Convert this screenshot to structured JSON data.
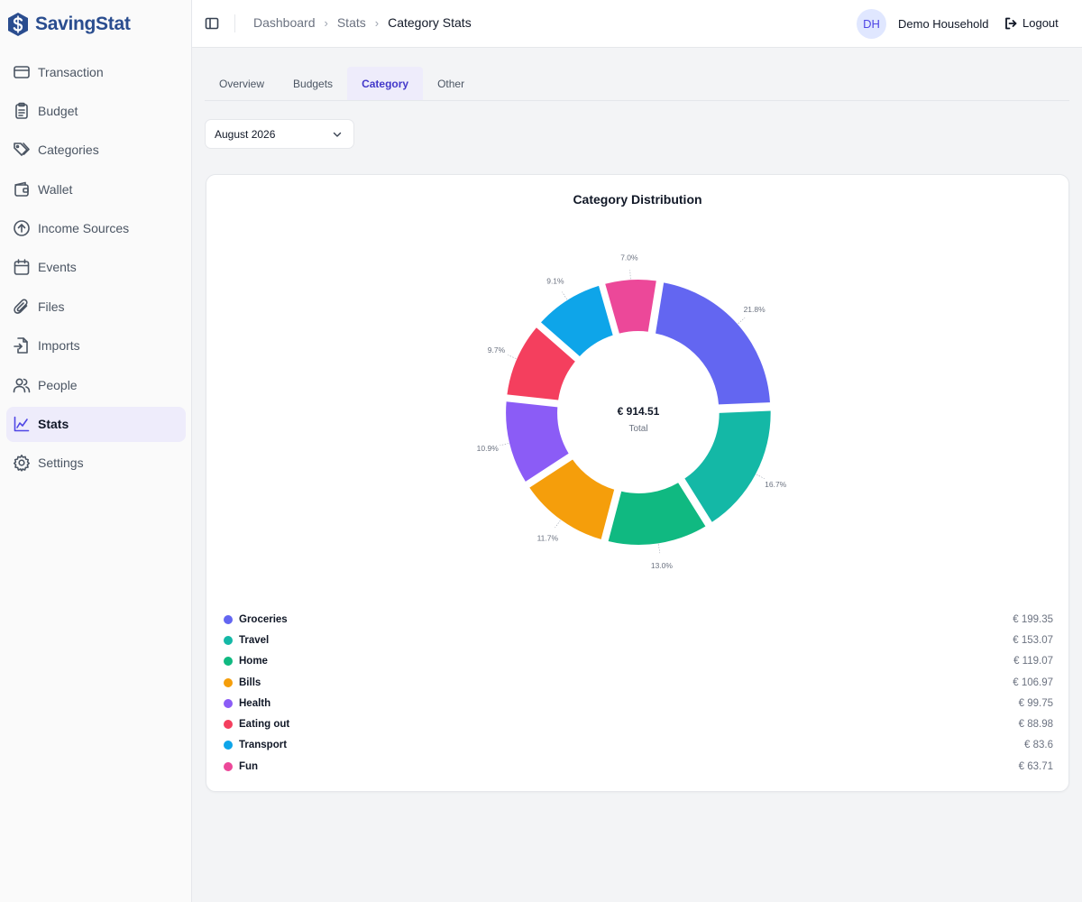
{
  "brand": {
    "name": "SavingStat",
    "logo_icon": "dollar-s-icon",
    "color": "#2a4d8f"
  },
  "sidebar": {
    "items": [
      {
        "label": "Transaction",
        "icon": "credit-card-icon",
        "active": false
      },
      {
        "label": "Budget",
        "icon": "clipboard-icon",
        "active": false
      },
      {
        "label": "Categories",
        "icon": "tags-icon",
        "active": false
      },
      {
        "label": "Wallet",
        "icon": "wallet-icon",
        "active": false
      },
      {
        "label": "Income Sources",
        "icon": "arrow-up-circle-icon",
        "active": false
      },
      {
        "label": "Events",
        "icon": "calendar-icon",
        "active": false
      },
      {
        "label": "Files",
        "icon": "paperclip-icon",
        "active": false
      },
      {
        "label": "Imports",
        "icon": "file-import-icon",
        "active": false
      },
      {
        "label": "People",
        "icon": "users-icon",
        "active": false
      },
      {
        "label": "Stats",
        "icon": "chart-icon",
        "active": true
      },
      {
        "label": "Settings",
        "icon": "gear-icon",
        "active": false
      }
    ]
  },
  "header": {
    "breadcrumb": [
      "Dashboard",
      "Stats",
      "Category Stats"
    ],
    "avatar_initials": "DH",
    "household": "Demo Household",
    "logout_label": "Logout"
  },
  "tabs": [
    {
      "label": "Overview",
      "active": false
    },
    {
      "label": "Budgets",
      "active": false
    },
    {
      "label": "Category",
      "active": true
    },
    {
      "label": "Other",
      "active": false
    }
  ],
  "month_select": {
    "value": "August 2026"
  },
  "card": {
    "title": "Category Distribution",
    "center_total": "€ 914.51",
    "center_label": "Total"
  },
  "chart_data": {
    "type": "pie",
    "title": "Category Distribution",
    "categories": [
      "Groceries",
      "Travel",
      "Home",
      "Bills",
      "Health",
      "Eating out",
      "Transport",
      "Fun"
    ],
    "values": [
      199.35,
      153.07,
      119.07,
      106.97,
      99.75,
      88.98,
      83.6,
      63.71
    ],
    "value_labels": [
      "€ 199.35",
      "€ 153.07",
      "€ 119.07",
      "€ 106.97",
      "€ 99.75",
      "€ 88.98",
      "€ 83.6",
      "€ 63.71"
    ],
    "percent_labels": [
      "21.8%",
      "16.7%",
      "13.0%",
      "11.7%",
      "10.9%",
      "9.7%",
      "9.1%",
      "7.0%"
    ],
    "colors": [
      "#6366f1",
      "#14b8a6",
      "#10b981",
      "#f59e0b",
      "#8b5cf6",
      "#f43f5e",
      "#0ea5e9",
      "#ec4899"
    ],
    "total": 914.51,
    "legend": "bottom"
  }
}
